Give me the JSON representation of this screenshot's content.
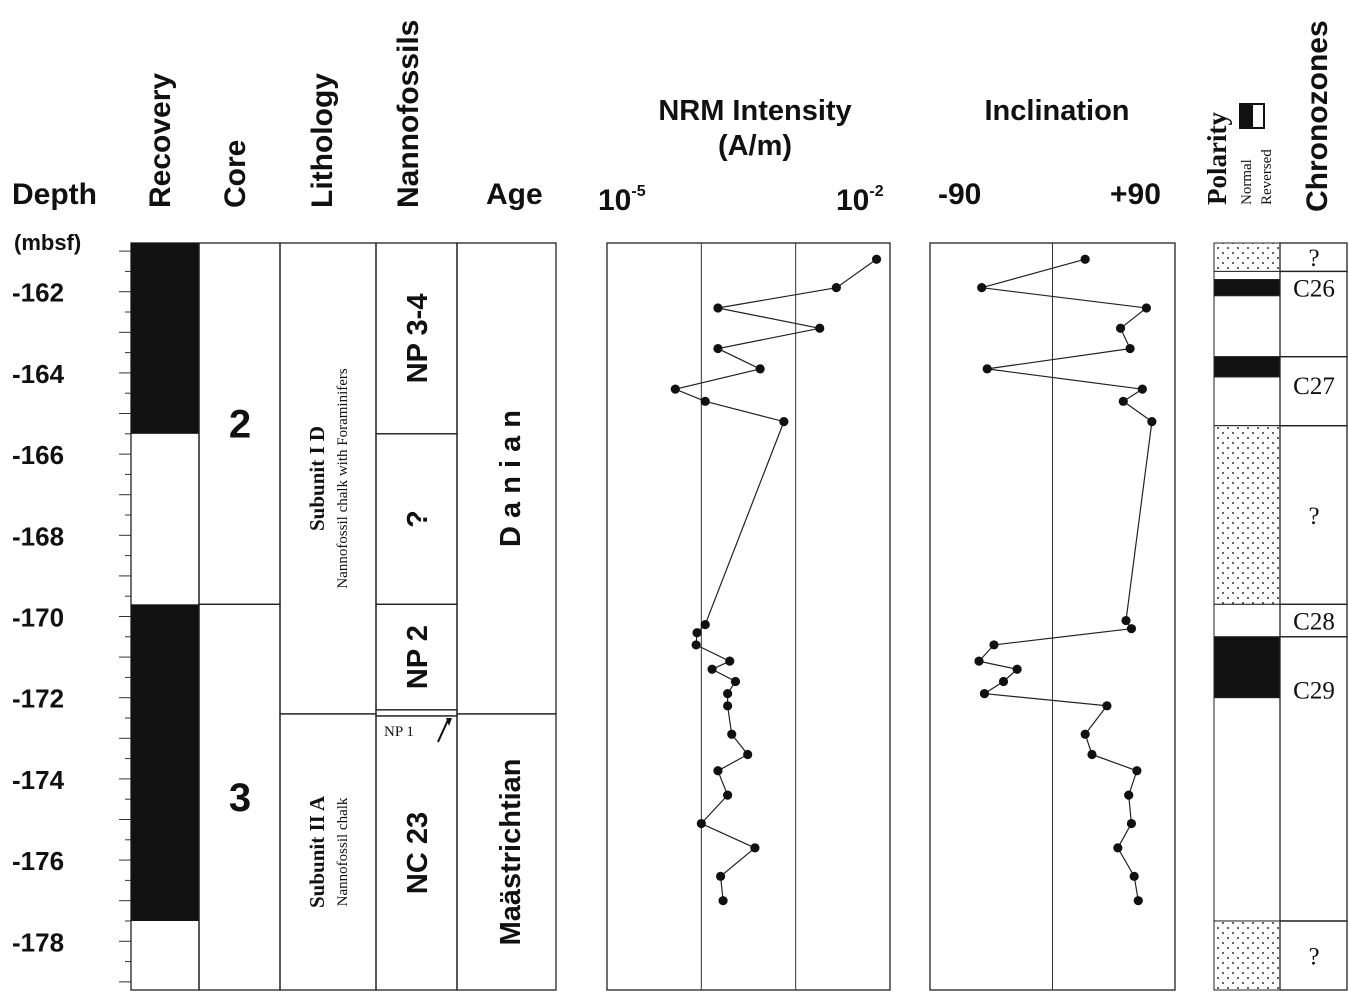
{
  "headers": {
    "depth": "Depth",
    "depth_unit": "(mbsf)",
    "recovery": "Recovery",
    "core": "Core",
    "lithology": "Lithology",
    "nannofossils": "Nannofossils",
    "age": "Age",
    "nrm_title_1": "NRM Intensity",
    "nrm_title_2": "(A/m)",
    "nrm_min_base": "10",
    "nrm_min_exp": "-5",
    "nrm_max_base": "10",
    "nrm_max_exp": "-2",
    "inc_title": "Inclination",
    "inc_min": "-90",
    "inc_max": "+90",
    "polarity": "Polarity",
    "normal": "Normal",
    "reversed": "Reversed",
    "chronozones": "Chronozones"
  },
  "depth_ticks": [
    "-162",
    "-164",
    "-166",
    "-168",
    "-170",
    "-172",
    "-174",
    "-176",
    "-178"
  ],
  "cores": [
    {
      "label": "2",
      "top": -160.8,
      "bottom": -169.7
    },
    {
      "label": "3",
      "top": -169.7,
      "bottom": -179.2
    }
  ],
  "recovery_intervals": [
    {
      "top": -160.8,
      "bottom": -165.5
    },
    {
      "top": -169.7,
      "bottom": -177.5
    }
  ],
  "lithology_units": [
    {
      "name": "Subunit I D",
      "desc": "Nannofossil chalk with Foraminifers",
      "top": -160.8,
      "bottom": -172.4
    },
    {
      "name": "Subunit II A",
      "desc": "Nannofossil chalk",
      "top": -172.4,
      "bottom": -179.2
    }
  ],
  "nannofossil_zones": [
    {
      "label": "NP 3-4",
      "top": -160.8,
      "bottom": -165.5
    },
    {
      "label": "?",
      "top": -165.5,
      "bottom": -169.7
    },
    {
      "label": "NP 2",
      "top": -169.7,
      "bottom": -172.3
    },
    {
      "label": "NP 1",
      "top": -172.3,
      "bottom": -172.45
    },
    {
      "label": "NC 23",
      "top": -172.45,
      "bottom": -179.2
    }
  ],
  "ages": [
    {
      "label": "D a n i a n",
      "top": -160.8,
      "bottom": -172.4
    },
    {
      "label": "Maästrichtian",
      "top": -172.4,
      "bottom": -179.2
    }
  ],
  "polarity_intervals": [
    {
      "state": "unknown",
      "top": -160.8,
      "bottom": -161.5
    },
    {
      "state": "reversed",
      "top": -161.5,
      "bottom": -161.7
    },
    {
      "state": "normal",
      "top": -161.7,
      "bottom": -162.1
    },
    {
      "state": "reversed",
      "top": -162.1,
      "bottom": -163.6
    },
    {
      "state": "normal",
      "top": -163.6,
      "bottom": -164.1
    },
    {
      "state": "reversed",
      "top": -164.1,
      "bottom": -165.3
    },
    {
      "state": "unknown",
      "top": -165.3,
      "bottom": -169.7
    },
    {
      "state": "reversed",
      "top": -169.7,
      "bottom": -170.5
    },
    {
      "state": "normal",
      "top": -170.5,
      "bottom": -172.0
    },
    {
      "state": "reversed",
      "top": -172.0,
      "bottom": -177.5
    },
    {
      "state": "unknown",
      "top": -177.5,
      "bottom": -179.2
    }
  ],
  "chronozones": [
    {
      "label": "?",
      "top": -160.8,
      "bottom": -161.5
    },
    {
      "label": "C26",
      "top": -161.5,
      "bottom": -163.6
    },
    {
      "label": "C27",
      "top": -163.6,
      "bottom": -165.3
    },
    {
      "label": "?",
      "top": -165.3,
      "bottom": -169.7
    },
    {
      "label": "C28",
      "top": -169.7,
      "bottom": -170.5
    },
    {
      "label": "C29",
      "top": -170.5,
      "bottom": -177.5
    },
    {
      "label": "?",
      "top": -177.5,
      "bottom": -179.2
    }
  ],
  "chart_data": [
    {
      "type": "line",
      "title": "NRM Intensity (A/m)",
      "x_scale": "log",
      "xlim": [
        1e-05,
        0.01
      ],
      "ylim": [
        -179.2,
        -160.8
      ],
      "ylabel": "Depth (mbsf)",
      "grid": true,
      "points": [
        {
          "depth": -161.2,
          "x": 0.0072
        },
        {
          "depth": -161.9,
          "x": 0.0027
        },
        {
          "depth": -162.4,
          "x": 0.00015
        },
        {
          "depth": -162.9,
          "x": 0.0018
        },
        {
          "depth": -163.4,
          "x": 0.00015
        },
        {
          "depth": -163.9,
          "x": 0.00042
        },
        {
          "depth": -164.4,
          "x": 5.3e-05
        },
        {
          "depth": -164.7,
          "x": 0.00011
        },
        {
          "depth": -165.2,
          "x": 0.00075
        },
        {
          "depth": -170.2,
          "x": 0.00011
        },
        {
          "depth": -170.4,
          "x": 9e-05
        },
        {
          "depth": -170.7,
          "x": 8.8e-05
        },
        {
          "depth": -171.1,
          "x": 0.0002
        },
        {
          "depth": -171.3,
          "x": 0.00013
        },
        {
          "depth": -171.6,
          "x": 0.00023
        },
        {
          "depth": -171.9,
          "x": 0.00019
        },
        {
          "depth": -172.2,
          "x": 0.00019
        },
        {
          "depth": -172.9,
          "x": 0.00021
        },
        {
          "depth": -173.4,
          "x": 0.00031
        },
        {
          "depth": -173.8,
          "x": 0.00015
        },
        {
          "depth": -174.4,
          "x": 0.00019
        },
        {
          "depth": -175.1,
          "x": 0.0001
        },
        {
          "depth": -175.7,
          "x": 0.00037
        },
        {
          "depth": -176.4,
          "x": 0.00016
        },
        {
          "depth": -177.0,
          "x": 0.00017
        }
      ]
    },
    {
      "type": "line",
      "title": "Inclination",
      "xlim": [
        -90,
        90
      ],
      "ylim": [
        -179.2,
        -160.8
      ],
      "ylabel": "Depth (mbsf)",
      "grid": true,
      "points": [
        {
          "depth": -161.2,
          "x": 24
        },
        {
          "depth": -161.9,
          "x": -52
        },
        {
          "depth": -162.4,
          "x": 69
        },
        {
          "depth": -162.9,
          "x": 50
        },
        {
          "depth": -163.4,
          "x": 57
        },
        {
          "depth": -163.9,
          "x": -48
        },
        {
          "depth": -164.4,
          "x": 66
        },
        {
          "depth": -164.7,
          "x": 52
        },
        {
          "depth": -165.2,
          "x": 73
        },
        {
          "depth": -170.1,
          "x": 54
        },
        {
          "depth": -170.3,
          "x": 58
        },
        {
          "depth": -170.7,
          "x": -43
        },
        {
          "depth": -171.1,
          "x": -54
        },
        {
          "depth": -171.3,
          "x": -26
        },
        {
          "depth": -171.6,
          "x": -36
        },
        {
          "depth": -171.9,
          "x": -50
        },
        {
          "depth": -172.2,
          "x": 40
        },
        {
          "depth": -172.9,
          "x": 24
        },
        {
          "depth": -173.4,
          "x": 29
        },
        {
          "depth": -173.8,
          "x": 62
        },
        {
          "depth": -174.4,
          "x": 56
        },
        {
          "depth": -175.1,
          "x": 58
        },
        {
          "depth": -175.7,
          "x": 48
        },
        {
          "depth": -176.4,
          "x": 60
        },
        {
          "depth": -177.0,
          "x": 63
        }
      ]
    }
  ]
}
